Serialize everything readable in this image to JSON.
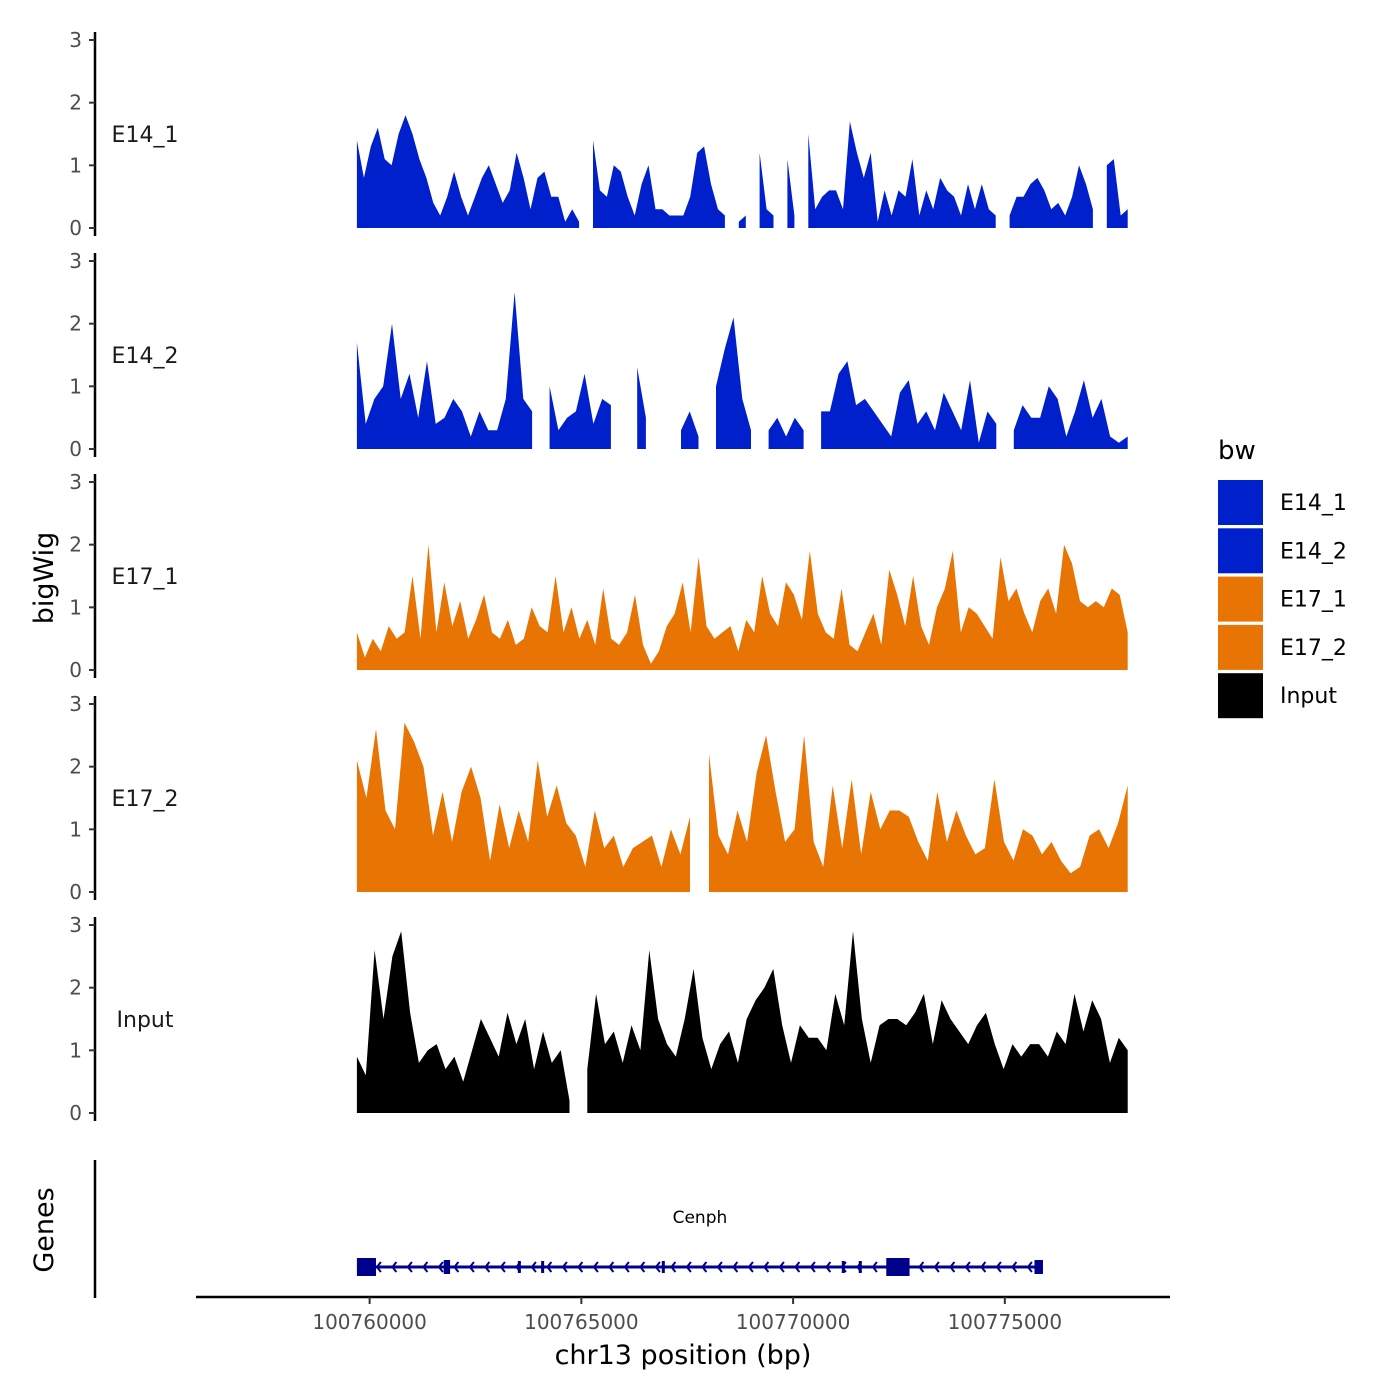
{
  "chart_data": {
    "type": "area",
    "xlabel": "chr13 position (bp)",
    "ylabel": "bigWig",
    "xlim": [
      100755900,
      100778900
    ],
    "ylim": [
      0,
      3
    ],
    "y_ticks": [
      "0",
      "1",
      "2",
      "3"
    ],
    "x_ticks": [
      {
        "value": 100760000,
        "label": "100760000"
      },
      {
        "value": 100765000,
        "label": "100765000"
      },
      {
        "value": 100770000,
        "label": "100770000"
      },
      {
        "value": 100775000,
        "label": "100775000"
      }
    ],
    "x_start": 100759700,
    "x_end": 100777900,
    "legend": {
      "title": "bw",
      "placement": "right",
      "entries": [
        {
          "name": "E14_1",
          "color": "#0020cc"
        },
        {
          "name": "E14_2",
          "color": "#0020cc"
        },
        {
          "name": "E17_1",
          "color": "#e87503"
        },
        {
          "name": "E17_2",
          "color": "#e87503"
        },
        {
          "name": "Input",
          "color": "#000000"
        }
      ]
    },
    "series": [
      {
        "name": "E14_1",
        "color": "#0020cc",
        "values": [
          1.4,
          0.8,
          1.3,
          1.6,
          1.1,
          1.0,
          1.5,
          1.8,
          1.5,
          1.1,
          0.8,
          0.4,
          0.2,
          0.5,
          0.9,
          0.5,
          0.2,
          0.5,
          0.8,
          1.0,
          0.7,
          0.4,
          0.6,
          1.2,
          0.8,
          0.3,
          0.8,
          0.9,
          0.5,
          0.5,
          0.1,
          0.3,
          0.1,
          null,
          1.4,
          0.6,
          0.5,
          1.0,
          0.9,
          0.5,
          0.2,
          0.7,
          1.0,
          0.3,
          0.3,
          0.2,
          0.2,
          0.2,
          0.5,
          1.2,
          1.3,
          0.7,
          0.3,
          0.2,
          null,
          0.1,
          0.2,
          null,
          1.2,
          0.3,
          0.2,
          null,
          1.1,
          0.2,
          null,
          1.5,
          0.3,
          0.5,
          0.6,
          0.6,
          0.3,
          1.7,
          1.2,
          0.8,
          1.2,
          0.1,
          0.6,
          0.2,
          0.6,
          0.5,
          1.1,
          0.2,
          0.6,
          0.3,
          0.8,
          0.6,
          0.5,
          0.2,
          0.7,
          0.3,
          0.7,
          0.3,
          0.2,
          null,
          0.2,
          0.5,
          0.5,
          0.7,
          0.8,
          0.6,
          0.3,
          0.4,
          0.2,
          0.5,
          1.0,
          0.7,
          0.3,
          null,
          1.0,
          1.1,
          0.2,
          0.3
        ]
      },
      {
        "name": "E14_2",
        "color": "#0020cc",
        "values": [
          1.7,
          0.4,
          0.8,
          1.0,
          2.0,
          0.8,
          1.2,
          0.5,
          1.4,
          0.4,
          0.5,
          0.8,
          0.6,
          0.2,
          0.6,
          0.3,
          0.3,
          0.8,
          2.5,
          0.8,
          0.6,
          null,
          1.0,
          0.3,
          0.5,
          0.6,
          1.2,
          0.4,
          0.8,
          0.7,
          null,
          null,
          1.3,
          0.5,
          null,
          null,
          null,
          0.3,
          0.6,
          0.2,
          null,
          1.0,
          1.6,
          2.1,
          0.8,
          0.3,
          null,
          0.3,
          0.5,
          0.2,
          0.5,
          0.3,
          null,
          0.6,
          0.6,
          1.2,
          1.4,
          0.7,
          0.8,
          0.6,
          0.4,
          0.2,
          0.9,
          1.1,
          0.4,
          0.6,
          0.3,
          0.9,
          0.6,
          0.3,
          1.1,
          0.1,
          0.6,
          0.4,
          null,
          0.3,
          0.7,
          0.5,
          0.5,
          1.0,
          0.8,
          0.2,
          0.6,
          1.1,
          0.5,
          0.8,
          0.2,
          0.1,
          0.2
        ]
      },
      {
        "name": "E17_1",
        "color": "#e87503",
        "values": [
          0.6,
          0.2,
          0.5,
          0.3,
          0.7,
          0.5,
          0.6,
          1.5,
          0.5,
          2.0,
          0.6,
          1.4,
          0.7,
          1.1,
          0.5,
          0.8,
          1.2,
          0.6,
          0.5,
          0.8,
          0.4,
          0.5,
          1.0,
          0.7,
          0.6,
          1.5,
          0.6,
          1.0,
          0.5,
          0.8,
          0.4,
          1.3,
          0.5,
          0.4,
          0.6,
          1.2,
          0.4,
          0.1,
          0.3,
          0.7,
          0.9,
          1.4,
          0.6,
          1.8,
          0.7,
          0.5,
          0.6,
          0.7,
          0.3,
          0.8,
          0.6,
          1.5,
          0.9,
          0.7,
          1.4,
          1.2,
          0.8,
          1.9,
          0.9,
          0.6,
          0.5,
          1.3,
          0.4,
          0.3,
          0.6,
          0.9,
          0.4,
          1.6,
          1.2,
          0.7,
          1.5,
          0.7,
          0.4,
          1.0,
          1.3,
          1.9,
          0.6,
          1.0,
          0.9,
          0.7,
          0.5,
          1.8,
          1.1,
          1.3,
          0.9,
          0.6,
          1.1,
          1.3,
          0.9,
          2.0,
          1.7,
          1.1,
          1.0,
          1.1,
          1.0,
          1.3,
          1.2,
          0.6
        ]
      },
      {
        "name": "E17_2",
        "color": "#e87503",
        "values": [
          2.1,
          1.5,
          2.6,
          1.3,
          1.0,
          2.7,
          2.4,
          2.0,
          0.9,
          1.6,
          0.8,
          1.6,
          2.0,
          1.5,
          0.5,
          1.4,
          0.7,
          1.3,
          0.8,
          2.1,
          1.2,
          1.7,
          1.1,
          0.9,
          0.4,
          1.3,
          0.7,
          0.9,
          0.4,
          0.7,
          0.8,
          0.9,
          0.4,
          1.0,
          0.6,
          1.2,
          null,
          2.2,
          0.9,
          0.6,
          1.3,
          0.8,
          1.9,
          2.5,
          1.6,
          0.8,
          1.0,
          2.5,
          0.8,
          0.4,
          1.7,
          0.7,
          1.8,
          0.6,
          1.6,
          1.0,
          1.3,
          1.3,
          1.2,
          0.8,
          0.5,
          1.6,
          0.8,
          1.3,
          0.9,
          0.6,
          0.7,
          1.8,
          0.8,
          0.5,
          1.0,
          0.9,
          0.6,
          0.8,
          0.5,
          0.3,
          0.4,
          0.9,
          1.0,
          0.7,
          1.1,
          1.7
        ]
      },
      {
        "name": "Input",
        "color": "#000000",
        "values": [
          0.9,
          0.6,
          2.6,
          1.5,
          2.5,
          2.9,
          1.6,
          0.8,
          1.0,
          1.1,
          0.7,
          0.9,
          0.5,
          1.0,
          1.5,
          1.2,
          0.9,
          1.6,
          1.1,
          1.5,
          0.7,
          1.3,
          0.8,
          1.0,
          0.2,
          null,
          0.7,
          1.9,
          1.1,
          1.3,
          0.8,
          1.4,
          1.0,
          2.6,
          1.5,
          1.1,
          0.9,
          1.5,
          2.3,
          1.2,
          0.7,
          1.1,
          1.3,
          0.8,
          1.5,
          1.8,
          2.0,
          2.3,
          1.4,
          0.8,
          1.4,
          1.2,
          1.2,
          1.0,
          1.9,
          1.4,
          2.9,
          1.5,
          0.8,
          1.4,
          1.5,
          1.5,
          1.4,
          1.6,
          1.9,
          1.1,
          1.8,
          1.5,
          1.3,
          1.1,
          1.4,
          1.6,
          1.1,
          0.7,
          1.1,
          0.9,
          1.1,
          1.1,
          0.9,
          1.3,
          1.1,
          1.9,
          1.3,
          1.8,
          1.5,
          0.8,
          1.2,
          1.0
        ]
      }
    ],
    "genes": {
      "label": "Genes",
      "items": [
        {
          "name": "Cenph",
          "start": 100759700,
          "end": 100775900,
          "strand": "-",
          "color": "#00008b",
          "exons": [
            [
              100759700,
              100760150
            ],
            [
              100761750,
              100761900
            ],
            [
              100763500,
              100763550
            ],
            [
              100764050,
              100764100
            ],
            [
              100766900,
              100766950
            ],
            [
              100771150,
              100771200
            ],
            [
              100771550,
              100771600
            ],
            [
              100772200,
              100772750
            ],
            [
              100775700,
              100775900
            ]
          ]
        }
      ]
    }
  }
}
